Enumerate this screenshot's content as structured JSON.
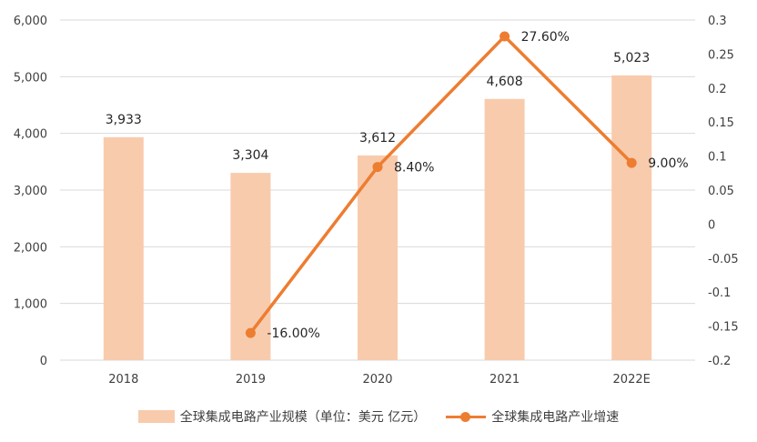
{
  "chart_data": {
    "type": "bar",
    "categories": [
      "2018",
      "2019",
      "2020",
      "2021",
      "2022E"
    ],
    "series": [
      {
        "name": "全球集成电路产业规模（单位：美元 亿元）",
        "type": "bar",
        "axis": "left",
        "values": [
          3933,
          3304,
          3612,
          4608,
          5023
        ],
        "labels": [
          "3,933",
          "3,304",
          "3,612",
          "4,608",
          "5,023"
        ],
        "color": "#f8cbad"
      },
      {
        "name": "全球集成电路产业增速",
        "type": "line",
        "axis": "right",
        "x": [
          "2019",
          "2020",
          "2021",
          "2022E"
        ],
        "values": [
          -0.16,
          0.084,
          0.276,
          0.09
        ],
        "labels": [
          "-16.00%",
          "8.40%",
          "27.60%",
          "9.00%"
        ],
        "color": "#ed7d31"
      }
    ],
    "y_left": {
      "ylim": [
        0,
        6000
      ],
      "ticks": [
        0,
        1000,
        2000,
        3000,
        4000,
        5000,
        6000
      ],
      "tick_labels": [
        "0",
        "1,000",
        "2,000",
        "3,000",
        "4,000",
        "5,000",
        "6,000"
      ]
    },
    "y_right": {
      "ylim": [
        -0.2,
        0.3
      ],
      "ticks": [
        -0.2,
        -0.15,
        -0.1,
        -0.05,
        0,
        0.05,
        0.1,
        0.15,
        0.2,
        0.25,
        0.3
      ],
      "tick_labels": [
        "-0.2",
        "-0.15",
        "-0.1",
        "-0.05",
        "0",
        "0.05",
        "0.1",
        "0.15",
        "0.2",
        "0.25",
        "0.3"
      ]
    },
    "grid": true,
    "legend": "bottom",
    "title": "",
    "xlabel": "",
    "ylabel": ""
  }
}
